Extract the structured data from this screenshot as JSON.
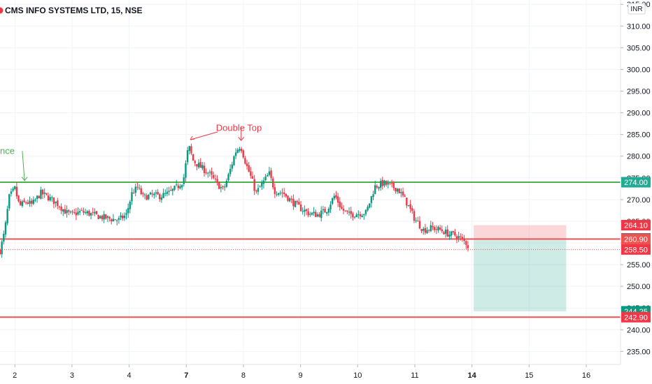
{
  "chart_data": {
    "type": "candlestick",
    "title": "CMS INFO SYSTEMS LTD, 15, NSE",
    "currency": "INR",
    "ylim": [
      232,
      316
    ],
    "y_ticks": [
      "235.00",
      "240.00",
      "245.00",
      "250.00",
      "255.00",
      "260.00",
      "265.00",
      "270.00",
      "275.00",
      "280.00",
      "285.00",
      "290.00",
      "295.00",
      "300.00",
      "305.00",
      "310.00",
      "315.00"
    ],
    "x_ticks": [
      {
        "label": "2",
        "x": 1,
        "bold": false
      },
      {
        "label": "3",
        "x": 2,
        "bold": false
      },
      {
        "label": "4",
        "x": 3,
        "bold": false
      },
      {
        "label": "7",
        "x": 4,
        "bold": true
      },
      {
        "label": "8",
        "x": 5,
        "bold": false
      },
      {
        "label": "9",
        "x": 6,
        "bold": false
      },
      {
        "label": "10",
        "x": 7,
        "bold": false
      },
      {
        "label": "11",
        "x": 8,
        "bold": false
      },
      {
        "label": "14",
        "x": 9,
        "bold": true
      },
      {
        "label": "15",
        "x": 10,
        "bold": false
      },
      {
        "label": "16",
        "x": 11,
        "bold": false
      }
    ],
    "xlim": [
      0.74,
      11.6
    ],
    "close_path": [
      [
        0.74,
        258.2
      ],
      [
        0.82,
        262.5
      ],
      [
        0.9,
        270.5
      ],
      [
        1.0,
        272.5
      ],
      [
        1.08,
        268.5
      ],
      [
        1.2,
        269.5
      ],
      [
        1.3,
        268.8
      ],
      [
        1.45,
        271.5
      ],
      [
        1.55,
        270.8
      ],
      [
        1.75,
        269.0
      ],
      [
        1.9,
        267.0
      ],
      [
        2.0,
        266.5
      ],
      [
        2.15,
        267.2
      ],
      [
        2.3,
        266.8
      ],
      [
        2.5,
        266.0
      ],
      [
        2.7,
        265.5
      ],
      [
        2.82,
        265.3
      ],
      [
        2.95,
        266.5
      ],
      [
        3.05,
        271.5
      ],
      [
        3.15,
        272.8
      ],
      [
        3.25,
        270.5
      ],
      [
        3.4,
        271.0
      ],
      [
        3.55,
        270.8
      ],
      [
        3.7,
        271.5
      ],
      [
        3.85,
        273.0
      ],
      [
        3.95,
        274.5
      ],
      [
        4.04,
        282.5
      ],
      [
        4.12,
        279.0
      ],
      [
        4.25,
        277.5
      ],
      [
        4.4,
        276.0
      ],
      [
        4.55,
        273.5
      ],
      [
        4.65,
        272.2
      ],
      [
        4.75,
        276.0
      ],
      [
        4.86,
        281.0
      ],
      [
        4.95,
        282.5
      ],
      [
        5.05,
        278.0
      ],
      [
        5.15,
        274.5
      ],
      [
        5.22,
        271.5
      ],
      [
        5.35,
        274.0
      ],
      [
        5.45,
        276.0
      ],
      [
        5.55,
        272.0
      ],
      [
        5.7,
        271.5
      ],
      [
        5.85,
        269.5
      ],
      [
        6.0,
        268.0
      ],
      [
        6.15,
        266.8
      ],
      [
        6.3,
        266.5
      ],
      [
        6.45,
        267.5
      ],
      [
        6.6,
        271.0
      ],
      [
        6.72,
        267.8
      ],
      [
        6.85,
        266.5
      ],
      [
        7.0,
        266.8
      ],
      [
        7.15,
        267.0
      ],
      [
        7.3,
        273.0
      ],
      [
        7.45,
        273.8
      ],
      [
        7.55,
        273.2
      ],
      [
        7.7,
        272.5
      ],
      [
        7.85,
        269.5
      ],
      [
        8.0,
        265.5
      ],
      [
        8.15,
        263.0
      ],
      [
        8.3,
        263.5
      ],
      [
        8.45,
        263.0
      ],
      [
        8.6,
        262.0
      ],
      [
        8.72,
        261.8
      ],
      [
        8.82,
        260.8
      ],
      [
        8.9,
        260.0
      ],
      [
        8.96,
        258.5
      ]
    ],
    "levels": [
      {
        "name": "resistance",
        "price": 274.0,
        "label": "274.00",
        "color": "#4caf50",
        "style": "solid"
      },
      {
        "name": "entry",
        "price": 260.9,
        "label": "260.90",
        "color": "#ef5350",
        "style": "solid"
      },
      {
        "name": "support",
        "price": 242.9,
        "label": "242.90",
        "color": "#ef5350",
        "style": "solid"
      },
      {
        "name": "last",
        "price": 258.5,
        "label": "258.50",
        "color": "#ef5350",
        "style": "dotted"
      }
    ],
    "price_tags": [
      {
        "label": "264.10",
        "price": 264.1,
        "bg": "#f23645"
      },
      {
        "label": "261.05",
        "price": 261.05,
        "bg": "#5d606b"
      },
      {
        "label": "260.90",
        "price": 260.9,
        "bg": "#ef5350"
      },
      {
        "label": "258.50",
        "price": 258.5,
        "bg": "#f23645"
      },
      {
        "label": "274.00",
        "price": 274.0,
        "bg": "#22ab94"
      },
      {
        "label": "244.25",
        "price": 244.25,
        "bg": "#089981"
      },
      {
        "label": "242.90",
        "price": 242.9,
        "bg": "#f23645"
      }
    ],
    "position": {
      "type": "short",
      "x_start": 9.03,
      "x_end": 10.65,
      "entry": 260.9,
      "stop": 264.1,
      "target": 244.25
    },
    "annotations": [
      {
        "name": "double-top",
        "text": "Double Top",
        "color": "#f23645"
      },
      {
        "name": "resistance",
        "text": "nce",
        "color": "#4caf50"
      }
    ],
    "colors": {
      "up": "#089981",
      "down": "#f23645",
      "grid": "#f0f3fa"
    }
  }
}
